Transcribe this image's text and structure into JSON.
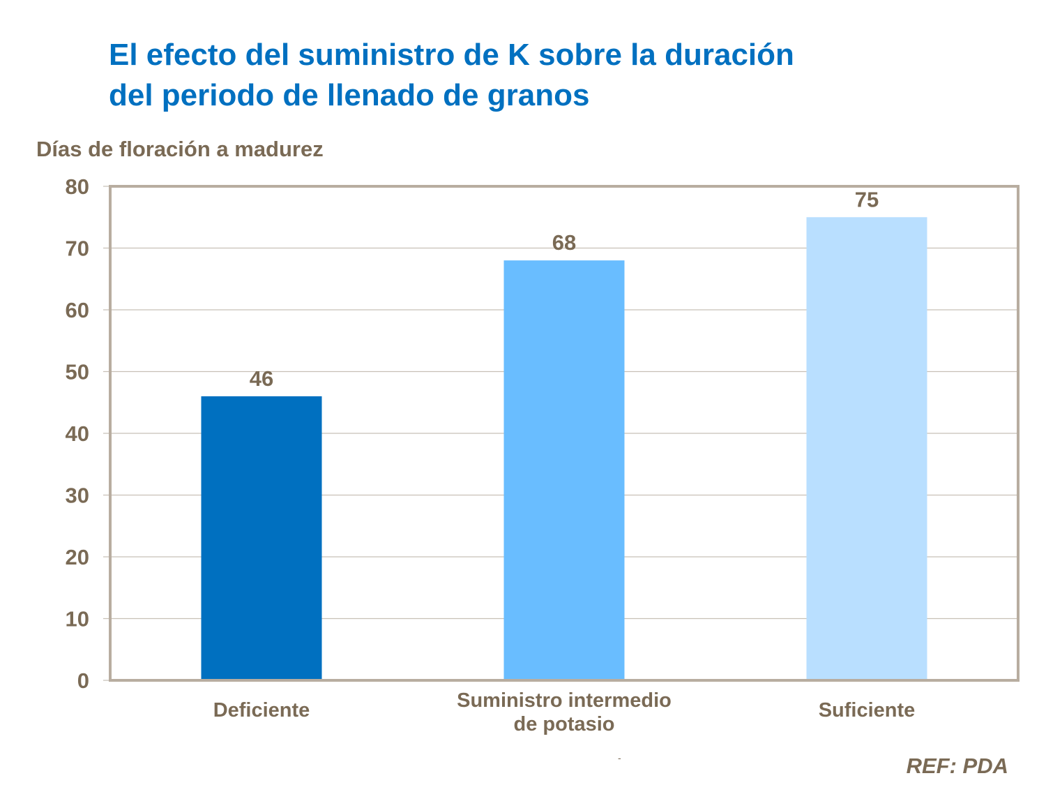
{
  "chart_data": {
    "type": "bar",
    "title": "El efecto del suministro de K sobre la duración del periodo de llenado de granos",
    "title_lines": [
      "El efecto del suministro de K sobre la duración",
      "del periodo de llenado de granos"
    ],
    "ylabel": "Días de floración a madurez",
    "xlabel": "",
    "categories": [
      "Deficiente",
      "Suministro intermedio de potasio",
      "Suficiente"
    ],
    "category_lines": [
      [
        "Deficiente"
      ],
      [
        "Suministro  intermedio",
        "de potasio"
      ],
      [
        "Suficiente"
      ]
    ],
    "values": [
      46,
      68,
      75
    ],
    "data_labels": [
      "46",
      "68",
      "75"
    ],
    "bar_colors": [
      "#0070C0",
      "#69BDFF",
      "#B9DFFF"
    ],
    "ylim": [
      0,
      80
    ],
    "yticks": [
      0,
      10,
      20,
      30,
      40,
      50,
      60,
      70,
      80
    ],
    "grid": true,
    "legend": "none"
  },
  "footer": {
    "ref": "REF: PDA",
    "dash": "-"
  },
  "colors": {
    "title": "#0070C0",
    "text": "#7A6A55",
    "frame": "#B8ADA0",
    "grid": "#C8C0B6"
  }
}
